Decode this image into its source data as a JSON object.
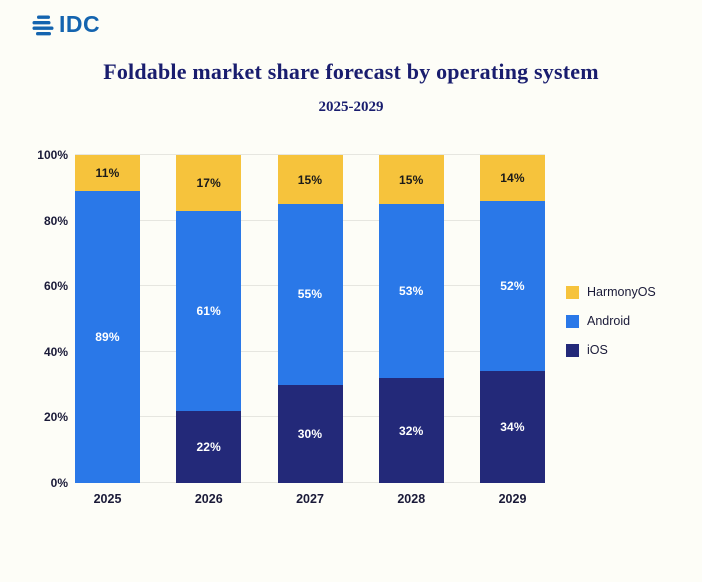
{
  "header": {
    "logo_text": "IDC"
  },
  "chart_data": {
    "type": "bar",
    "stacked": true,
    "title": "Foldable market share forecast by operating system",
    "subtitle": "2025-2029",
    "categories": [
      "2025",
      "2026",
      "2027",
      "2028",
      "2029"
    ],
    "series": [
      {
        "name": "iOS",
        "color": "#232979",
        "label_color": "#FFFFFF",
        "values": [
          0,
          22,
          30,
          32,
          34
        ]
      },
      {
        "name": "Android",
        "color": "#2A78E8",
        "label_color": "#FFFFFF",
        "values": [
          89,
          61,
          55,
          53,
          52
        ]
      },
      {
        "name": "HarmonyOS",
        "color": "#F6C33C",
        "label_color": "#1A1A1A",
        "values": [
          11,
          17,
          15,
          15,
          14
        ]
      }
    ],
    "unit": "%",
    "ylim": [
      0,
      100
    ],
    "yticks": [
      "0%",
      "20%",
      "40%",
      "60%",
      "80%",
      "100%"
    ],
    "legend": [
      "HarmonyOS",
      "Android",
      "iOS"
    ],
    "legend_position": "right",
    "grid": "horizontal"
  },
  "colors": {
    "background": "#FDFDF7",
    "title": "#191D6E",
    "axis_label": "#1A1A38",
    "gridline": "#E6E6E0",
    "logo_blue": "#1464AF"
  }
}
